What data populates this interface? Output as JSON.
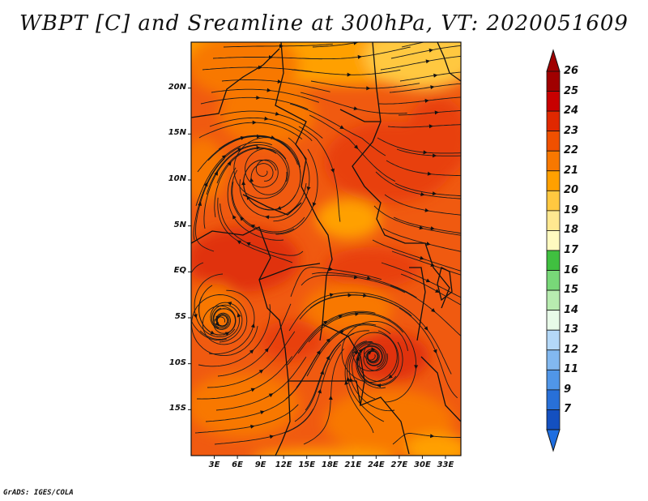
{
  "title": "WBPT [C] and Sreamline at 300hPa, VT: 2020051609",
  "credit": "GrADS: IGES/COLA",
  "map": {
    "lat_range": [
      -20,
      25
    ],
    "lon_range": [
      0,
      35
    ],
    "lat_ticks": [
      {
        "value": 20,
        "label": "20N"
      },
      {
        "value": 15,
        "label": "15N"
      },
      {
        "value": 10,
        "label": "10N"
      },
      {
        "value": 5,
        "label": "5N"
      },
      {
        "value": 0,
        "label": "EQ"
      },
      {
        "value": -5,
        "label": "5S"
      },
      {
        "value": -10,
        "label": "10S"
      },
      {
        "value": -15,
        "label": "15S"
      }
    ],
    "lon_ticks": [
      {
        "value": 3,
        "label": "3E"
      },
      {
        "value": 6,
        "label": "6E"
      },
      {
        "value": 9,
        "label": "9E"
      },
      {
        "value": 12,
        "label": "12E"
      },
      {
        "value": 15,
        "label": "15E"
      },
      {
        "value": 18,
        "label": "18E"
      },
      {
        "value": 21,
        "label": "21E"
      },
      {
        "value": 24,
        "label": "24E"
      },
      {
        "value": 27,
        "label": "27E"
      },
      {
        "value": 30,
        "label": "30E"
      },
      {
        "value": 33,
        "label": "33E"
      }
    ],
    "vortices": [
      {
        "name": "west-africa-cyclonic",
        "lon": 9.5,
        "lat": 11
      },
      {
        "name": "angola-coast",
        "lon": 4,
        "lat": -5.5
      },
      {
        "name": "tanzania",
        "lon": 23.5,
        "lat": -9
      }
    ]
  },
  "colorbar": {
    "levels": [
      {
        "label": "26",
        "color": "#a00000"
      },
      {
        "label": "25",
        "color": "#c80000"
      },
      {
        "label": "24",
        "color": "#e02800"
      },
      {
        "label": "23",
        "color": "#f05000"
      },
      {
        "label": "22",
        "color": "#f87800"
      },
      {
        "label": "21",
        "color": "#ffa000"
      },
      {
        "label": "20",
        "color": "#ffc840"
      },
      {
        "label": "19",
        "color": "#ffe890"
      },
      {
        "label": "18",
        "color": "#fffac0"
      },
      {
        "label": "17",
        "color": "#40c040"
      },
      {
        "label": "16",
        "color": "#78d878"
      },
      {
        "label": "15",
        "color": "#b8ecb0"
      },
      {
        "label": "14",
        "color": "#e8fae8"
      },
      {
        "label": "13",
        "color": "#b4d8f8"
      },
      {
        "label": "12",
        "color": "#82b8f0"
      },
      {
        "label": "11",
        "color": "#5096e8"
      },
      {
        "label": "9",
        "color": "#2870d8"
      },
      {
        "label": "7",
        "color": "#1450c0"
      }
    ],
    "over_color": "#a00000",
    "under_color": "#1e6ee0"
  }
}
